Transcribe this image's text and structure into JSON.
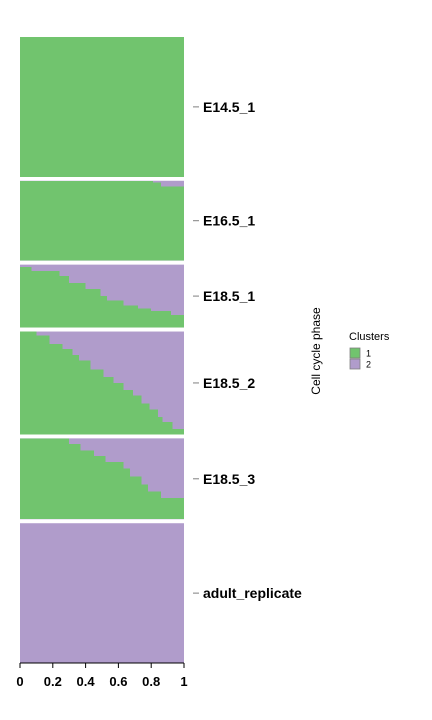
{
  "chart_data": {
    "type": "area",
    "xlabel": "",
    "ylabel": "Cell cycle phase",
    "xlim": [
      0,
      1
    ],
    "xticks": [
      "0",
      "0.2",
      "0.4",
      "0.6",
      "0.8",
      "1"
    ],
    "legend": {
      "title": "Clusters",
      "placement": "right",
      "entries": [
        {
          "label": "1",
          "color": "#71c46e"
        },
        {
          "label": "2",
          "color": "#b09ccb"
        }
      ]
    },
    "series": [
      {
        "name": "1",
        "color": "#71c46e"
      },
      {
        "name": "2",
        "color": "#b09ccb"
      }
    ],
    "facets": [
      {
        "label": "E14.5_1",
        "weight": 140,
        "profile": [
          [
            0,
            1.0
          ],
          [
            1,
            1.0
          ]
        ]
      },
      {
        "label": "E16.5_1",
        "weight": 80,
        "profile": [
          [
            0,
            1.0
          ],
          [
            0.81,
            1.0
          ],
          [
            0.81,
            0.98
          ],
          [
            0.86,
            0.98
          ],
          [
            0.86,
            0.93
          ],
          [
            1,
            0.93
          ]
        ]
      },
      {
        "label": "E18.5_1",
        "weight": 63,
        "profile": [
          [
            0,
            0.96
          ],
          [
            0.07,
            0.96
          ],
          [
            0.07,
            0.9
          ],
          [
            0.24,
            0.9
          ],
          [
            0.24,
            0.82
          ],
          [
            0.3,
            0.82
          ],
          [
            0.3,
            0.71
          ],
          [
            0.4,
            0.71
          ],
          [
            0.4,
            0.61
          ],
          [
            0.49,
            0.61
          ],
          [
            0.49,
            0.5
          ],
          [
            0.53,
            0.5
          ],
          [
            0.53,
            0.43
          ],
          [
            0.63,
            0.43
          ],
          [
            0.63,
            0.35
          ],
          [
            0.72,
            0.35
          ],
          [
            0.72,
            0.3
          ],
          [
            0.8,
            0.3
          ],
          [
            0.8,
            0.26
          ],
          [
            0.92,
            0.26
          ],
          [
            0.92,
            0.2
          ],
          [
            1,
            0.2
          ]
        ]
      },
      {
        "label": "E18.5_2",
        "weight": 103,
        "profile": [
          [
            0,
            1.0
          ],
          [
            0.1,
            1.0
          ],
          [
            0.1,
            0.96
          ],
          [
            0.18,
            0.96
          ],
          [
            0.18,
            0.88
          ],
          [
            0.26,
            0.88
          ],
          [
            0.26,
            0.83
          ],
          [
            0.32,
            0.83
          ],
          [
            0.32,
            0.77
          ],
          [
            0.36,
            0.77
          ],
          [
            0.36,
            0.72
          ],
          [
            0.43,
            0.72
          ],
          [
            0.43,
            0.63
          ],
          [
            0.51,
            0.63
          ],
          [
            0.51,
            0.56
          ],
          [
            0.57,
            0.56
          ],
          [
            0.57,
            0.5
          ],
          [
            0.63,
            0.5
          ],
          [
            0.63,
            0.43
          ],
          [
            0.69,
            0.43
          ],
          [
            0.69,
            0.38
          ],
          [
            0.74,
            0.38
          ],
          [
            0.74,
            0.3
          ],
          [
            0.79,
            0.3
          ],
          [
            0.79,
            0.24
          ],
          [
            0.84,
            0.24
          ],
          [
            0.84,
            0.17
          ],
          [
            0.87,
            0.17
          ],
          [
            0.87,
            0.12
          ],
          [
            0.93,
            0.12
          ],
          [
            0.93,
            0.05
          ],
          [
            1,
            0.05
          ]
        ]
      },
      {
        "label": "E18.5_3",
        "weight": 81,
        "profile": [
          [
            0,
            1.0
          ],
          [
            0.3,
            1.0
          ],
          [
            0.3,
            0.93
          ],
          [
            0.37,
            0.93
          ],
          [
            0.37,
            0.85
          ],
          [
            0.45,
            0.85
          ],
          [
            0.45,
            0.78
          ],
          [
            0.52,
            0.78
          ],
          [
            0.52,
            0.71
          ],
          [
            0.63,
            0.71
          ],
          [
            0.63,
            0.63
          ],
          [
            0.67,
            0.63
          ],
          [
            0.67,
            0.53
          ],
          [
            0.74,
            0.53
          ],
          [
            0.74,
            0.43
          ],
          [
            0.78,
            0.43
          ],
          [
            0.78,
            0.34
          ],
          [
            0.86,
            0.34
          ],
          [
            0.86,
            0.26
          ],
          [
            1,
            0.26
          ]
        ]
      },
      {
        "label": "adult_replicate",
        "weight": 140,
        "profile": [
          [
            0,
            0.0
          ],
          [
            1,
            0.0
          ]
        ]
      }
    ]
  }
}
